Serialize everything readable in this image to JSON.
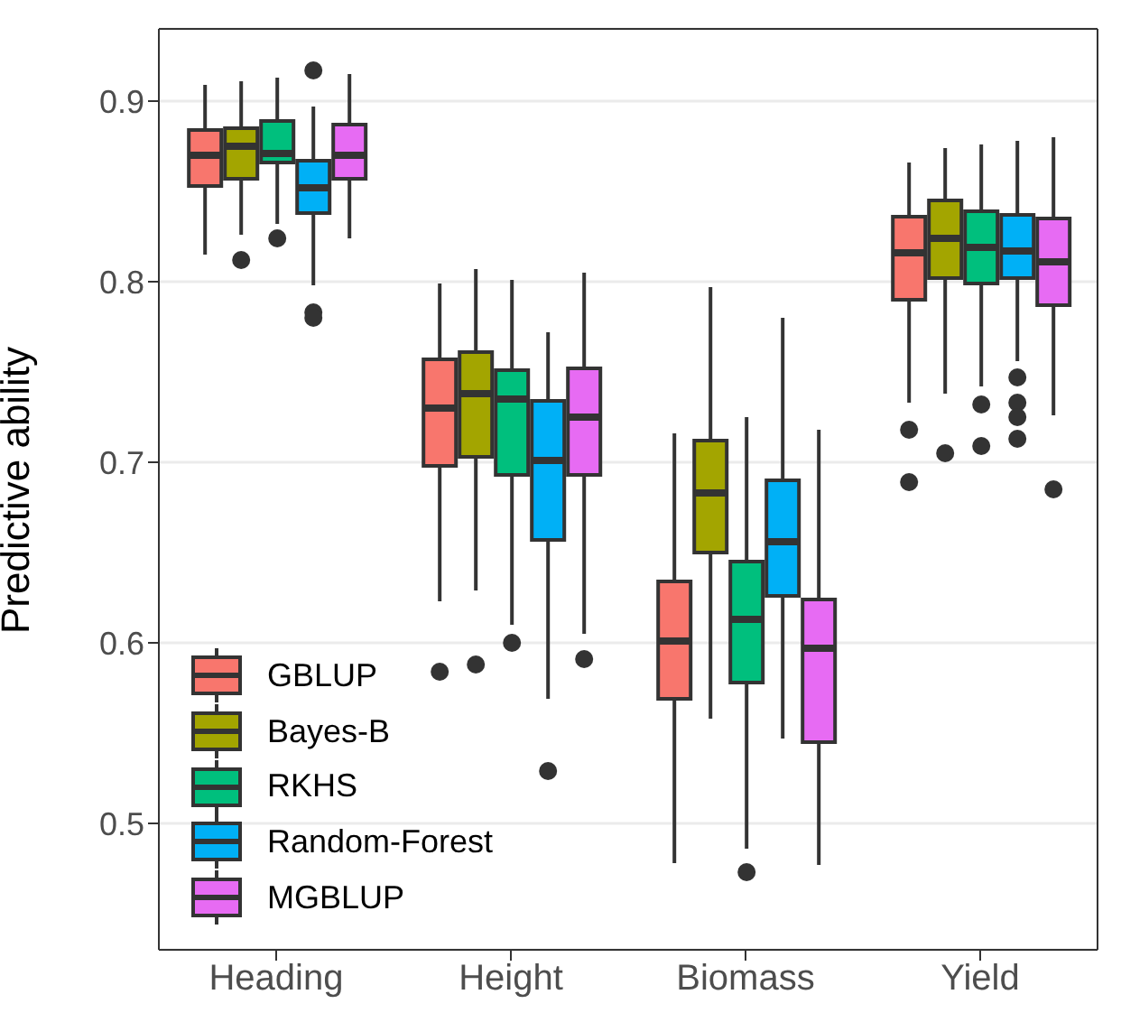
{
  "chart_data": {
    "type": "box",
    "ylabel": "Predictive ability",
    "categories": [
      "Heading",
      "Height",
      "Biomass",
      "Yield"
    ],
    "ylim": [
      0.43,
      0.94
    ],
    "yticks": [
      0.5,
      0.6,
      0.7,
      0.8,
      0.9
    ],
    "grid": "y",
    "legend": "bottom left",
    "series": [
      {
        "name": "GBLUP",
        "color": "#f8766d",
        "boxes": [
          {
            "low": 0.815,
            "q1": 0.853,
            "median": 0.87,
            "q3": 0.884,
            "high": 0.909
          },
          {
            "low": 0.623,
            "q1": 0.698,
            "median": 0.73,
            "q3": 0.757,
            "high": 0.799,
            "outliers": [
              0.584
            ]
          },
          {
            "low": 0.478,
            "q1": 0.569,
            "median": 0.601,
            "q3": 0.634,
            "high": 0.716
          },
          {
            "low": 0.733,
            "q1": 0.79,
            "median": 0.816,
            "q3": 0.836,
            "high": 0.866,
            "outliers": [
              0.718,
              0.689
            ]
          }
        ]
      },
      {
        "name": "Bayes-B",
        "color": "#a3a500",
        "boxes": [
          {
            "low": 0.826,
            "q1": 0.857,
            "median": 0.875,
            "q3": 0.885,
            "high": 0.911,
            "outliers": [
              0.812
            ]
          },
          {
            "low": 0.629,
            "q1": 0.703,
            "median": 0.738,
            "q3": 0.761,
            "high": 0.807,
            "outliers": [
              0.588
            ]
          },
          {
            "low": 0.558,
            "q1": 0.65,
            "median": 0.683,
            "q3": 0.712,
            "high": 0.797
          },
          {
            "low": 0.738,
            "q1": 0.802,
            "median": 0.824,
            "q3": 0.845,
            "high": 0.874,
            "outliers": [
              0.705
            ]
          }
        ]
      },
      {
        "name": "RKHS",
        "color": "#00bf7d",
        "boxes": [
          {
            "low": 0.832,
            "q1": 0.866,
            "median": 0.871,
            "q3": 0.889,
            "high": 0.913,
            "outliers": [
              0.824
            ]
          },
          {
            "low": 0.61,
            "q1": 0.693,
            "median": 0.735,
            "q3": 0.751,
            "high": 0.801,
            "outliers": [
              0.6
            ]
          },
          {
            "low": 0.486,
            "q1": 0.578,
            "median": 0.613,
            "q3": 0.645,
            "high": 0.725,
            "outliers": [
              0.473
            ]
          },
          {
            "low": 0.742,
            "q1": 0.799,
            "median": 0.819,
            "q3": 0.839,
            "high": 0.876,
            "outliers": [
              0.732,
              0.709
            ]
          }
        ]
      },
      {
        "name": "Random-Forest",
        "color": "#00b0f6",
        "boxes": [
          {
            "low": 0.798,
            "q1": 0.838,
            "median": 0.852,
            "q3": 0.867,
            "high": 0.897,
            "outliers": [
              0.917,
              0.783,
              0.78
            ]
          },
          {
            "low": 0.569,
            "q1": 0.657,
            "median": 0.701,
            "q3": 0.734,
            "high": 0.772,
            "outliers": [
              0.529
            ]
          },
          {
            "low": 0.547,
            "q1": 0.626,
            "median": 0.656,
            "q3": 0.69,
            "high": 0.78
          },
          {
            "low": 0.756,
            "q1": 0.802,
            "median": 0.817,
            "q3": 0.837,
            "high": 0.878,
            "outliers": [
              0.747,
              0.733,
              0.725,
              0.713
            ]
          }
        ]
      },
      {
        "name": "MGBLUP",
        "color": "#e76bf3",
        "boxes": [
          {
            "low": 0.824,
            "q1": 0.857,
            "median": 0.87,
            "q3": 0.887,
            "high": 0.915
          },
          {
            "low": 0.605,
            "q1": 0.693,
            "median": 0.725,
            "q3": 0.752,
            "high": 0.805,
            "outliers": [
              0.591
            ]
          },
          {
            "low": 0.477,
            "q1": 0.545,
            "median": 0.597,
            "q3": 0.624,
            "high": 0.718
          },
          {
            "low": 0.726,
            "q1": 0.787,
            "median": 0.811,
            "q3": 0.835,
            "high": 0.88,
            "outliers": [
              0.685
            ]
          }
        ]
      }
    ]
  }
}
